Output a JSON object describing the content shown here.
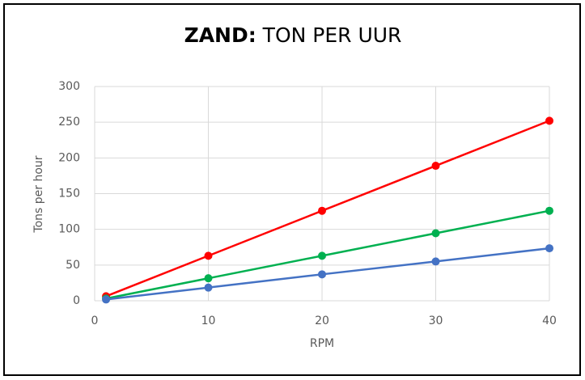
{
  "chart_data": {
    "type": "line",
    "title": [
      "ZAND:",
      "TON PER UUR"
    ],
    "x_label": "RPM",
    "y_label": "Tons per hour",
    "x": [
      1,
      10,
      20,
      30,
      40
    ],
    "series": [
      {
        "color": "#ff0000",
        "values": [
          6.3,
          63,
          126,
          189,
          252
        ]
      },
      {
        "color": "#00b050",
        "values": [
          3.1,
          31.5,
          63,
          94.5,
          126
        ]
      },
      {
        "color": "#4472c4",
        "values": [
          1.8,
          18.5,
          37,
          55,
          73.5
        ]
      }
    ],
    "xlim": [
      0,
      40
    ],
    "xticks": [
      0,
      10,
      20,
      30,
      40
    ],
    "ylim": [
      0,
      300
    ],
    "yticks": [
      0,
      50,
      100,
      150,
      200,
      250,
      300
    ],
    "grid": true
  }
}
